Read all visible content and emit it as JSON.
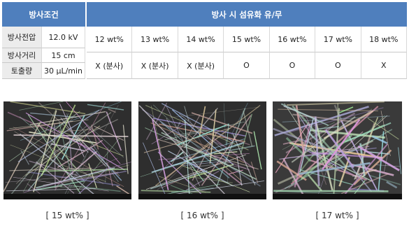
{
  "table": {
    "left_header": "방사조건",
    "right_header": "방사 시 섬유화 유/무",
    "conditions": [
      {
        "label": "방사전압",
        "value": "12.0 kV"
      },
      {
        "label": "방사거리",
        "value": "15 cm"
      },
      {
        "label": "토출량",
        "value": "30 μL/min"
      }
    ],
    "concentrations": [
      "12 wt%",
      "13 wt%",
      "14 wt%",
      "15 wt%",
      "16 wt%",
      "17 wt%",
      "18 wt%"
    ],
    "results": [
      "X (분사)",
      "X (분사)",
      "X (분사)",
      "O",
      "O",
      "O",
      "X"
    ]
  },
  "images": [
    {
      "caption": "[ 15 wt% ]"
    },
    {
      "caption": "[ 16 wt% ]"
    },
    {
      "caption": "[ 17 wt% ]"
    }
  ]
}
